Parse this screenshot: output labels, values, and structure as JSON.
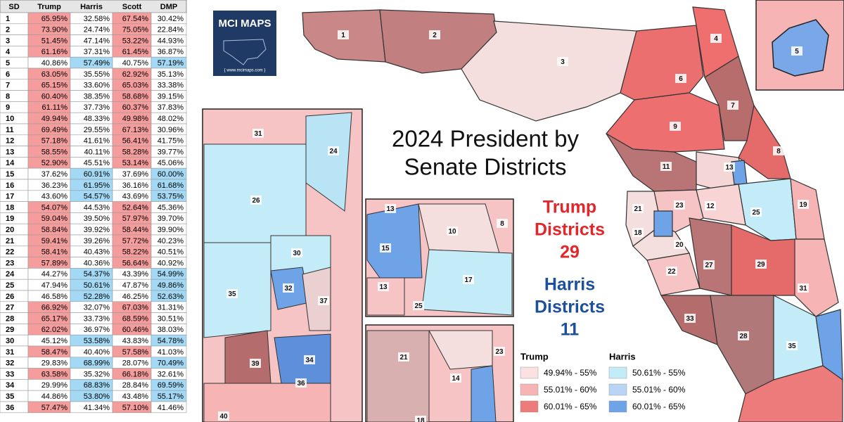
{
  "table": {
    "headers": [
      "SD",
      "Trump",
      "Harris",
      "Scott",
      "DMP"
    ],
    "rows": [
      [
        "1",
        "65.95%",
        "32.58%",
        "67.54%",
        "30.42%"
      ],
      [
        "2",
        "73.90%",
        "24.74%",
        "75.05%",
        "22.84%"
      ],
      [
        "3",
        "51.45%",
        "47.14%",
        "53.22%",
        "44.93%"
      ],
      [
        "4",
        "61.16%",
        "37.31%",
        "61.45%",
        "36.87%"
      ],
      [
        "5",
        "40.86%",
        "57.49%",
        "40.75%",
        "57.19%"
      ],
      [
        "6",
        "63.05%",
        "35.55%",
        "62.92%",
        "35.13%"
      ],
      [
        "7",
        "65.15%",
        "33.60%",
        "65.03%",
        "33.38%"
      ],
      [
        "8",
        "60.40%",
        "38.35%",
        "58.68%",
        "39.15%"
      ],
      [
        "9",
        "61.11%",
        "37.73%",
        "60.37%",
        "37.83%"
      ],
      [
        "10",
        "49.94%",
        "48.33%",
        "49.98%",
        "48.02%"
      ],
      [
        "11",
        "69.49%",
        "29.55%",
        "67.13%",
        "30.96%"
      ],
      [
        "12",
        "57.18%",
        "41.61%",
        "56.41%",
        "41.75%"
      ],
      [
        "13",
        "58.55%",
        "40.11%",
        "58.28%",
        "39.77%"
      ],
      [
        "14",
        "52.90%",
        "45.51%",
        "53.14%",
        "45.06%"
      ],
      [
        "15",
        "37.62%",
        "60.91%",
        "37.69%",
        "60.00%"
      ],
      [
        "16",
        "36.23%",
        "61.95%",
        "36.16%",
        "61.68%"
      ],
      [
        "17",
        "43.60%",
        "54.57%",
        "43.69%",
        "53.75%"
      ],
      [
        "18",
        "54.07%",
        "44.53%",
        "52.64%",
        "45.36%"
      ],
      [
        "19",
        "59.04%",
        "39.50%",
        "57.97%",
        "39.70%"
      ],
      [
        "20",
        "58.84%",
        "39.92%",
        "58.44%",
        "39.90%"
      ],
      [
        "21",
        "59.41%",
        "39.26%",
        "57.72%",
        "40.23%"
      ],
      [
        "22",
        "58.41%",
        "40.43%",
        "58.22%",
        "40.51%"
      ],
      [
        "23",
        "57.89%",
        "40.36%",
        "56.64%",
        "40.92%"
      ],
      [
        "24",
        "44.27%",
        "54.37%",
        "43.39%",
        "54.99%"
      ],
      [
        "25",
        "47.94%",
        "50.61%",
        "47.87%",
        "49.86%"
      ],
      [
        "26",
        "46.58%",
        "52.28%",
        "46.25%",
        "52.63%"
      ],
      [
        "27",
        "66.92%",
        "32.07%",
        "67.03%",
        "31.31%"
      ],
      [
        "28",
        "65.17%",
        "33.73%",
        "68.59%",
        "30.51%"
      ],
      [
        "29",
        "62.02%",
        "36.97%",
        "60.46%",
        "38.03%"
      ],
      [
        "30",
        "45.12%",
        "53.58%",
        "43.83%",
        "54.78%"
      ],
      [
        "31",
        "58.47%",
        "40.40%",
        "57.58%",
        "41.03%"
      ],
      [
        "32",
        "29.83%",
        "68.99%",
        "28.07%",
        "70.49%"
      ],
      [
        "33",
        "63.58%",
        "35.32%",
        "66.18%",
        "32.61%"
      ],
      [
        "34",
        "29.99%",
        "68.83%",
        "28.84%",
        "69.59%"
      ],
      [
        "35",
        "44.86%",
        "53.80%",
        "43.48%",
        "55.17%"
      ],
      [
        "36",
        "57.47%",
        "41.34%",
        "57.10%",
        "41.46%"
      ]
    ]
  },
  "logo": {
    "title": "MCI MAPS",
    "url": "{ www.mcimaps.com }"
  },
  "title": [
    "2024 President by",
    "Senate Districts"
  ],
  "summary": {
    "trump": [
      "Trump",
      "Districts",
      "29"
    ],
    "harris": [
      "Harris",
      "Districts",
      "11"
    ]
  },
  "legend": {
    "trump": {
      "title": "Trump",
      "items": [
        {
          "label": "49.94% - 55%",
          "color": "#fbe1e1"
        },
        {
          "label": "55.01% - 60%",
          "color": "#f6b4b4"
        },
        {
          "label": "60.01% - 65%",
          "color": "#ee7b7b"
        }
      ]
    },
    "harris": {
      "title": "Harris",
      "items": [
        {
          "label": "50.61% - 55%",
          "color": "#c4ecf8"
        },
        {
          "label": "55.01% - 60%",
          "color": "#b8d5f4"
        },
        {
          "label": "60.01% - 65%",
          "color": "#6fa3e8"
        }
      ]
    }
  },
  "main_map_labels": [
    "1",
    "2",
    "3",
    "4",
    "6",
    "7",
    "9",
    "8",
    "11",
    "13",
    "21",
    "23",
    "12",
    "25",
    "19",
    "18",
    "20",
    "22",
    "27",
    "29",
    "31",
    "33",
    "28",
    "35"
  ],
  "inset_top_labels": [
    "5"
  ],
  "inset_south_labels": [
    "31",
    "24",
    "26",
    "30",
    "35",
    "32",
    "37",
    "39",
    "34",
    "36",
    "40"
  ],
  "inset_central_labels": [
    "13",
    "10",
    "8",
    "15",
    "13",
    "17",
    "25"
  ],
  "inset_tampa_labels": [
    "21",
    "23",
    "14",
    "18"
  ]
}
